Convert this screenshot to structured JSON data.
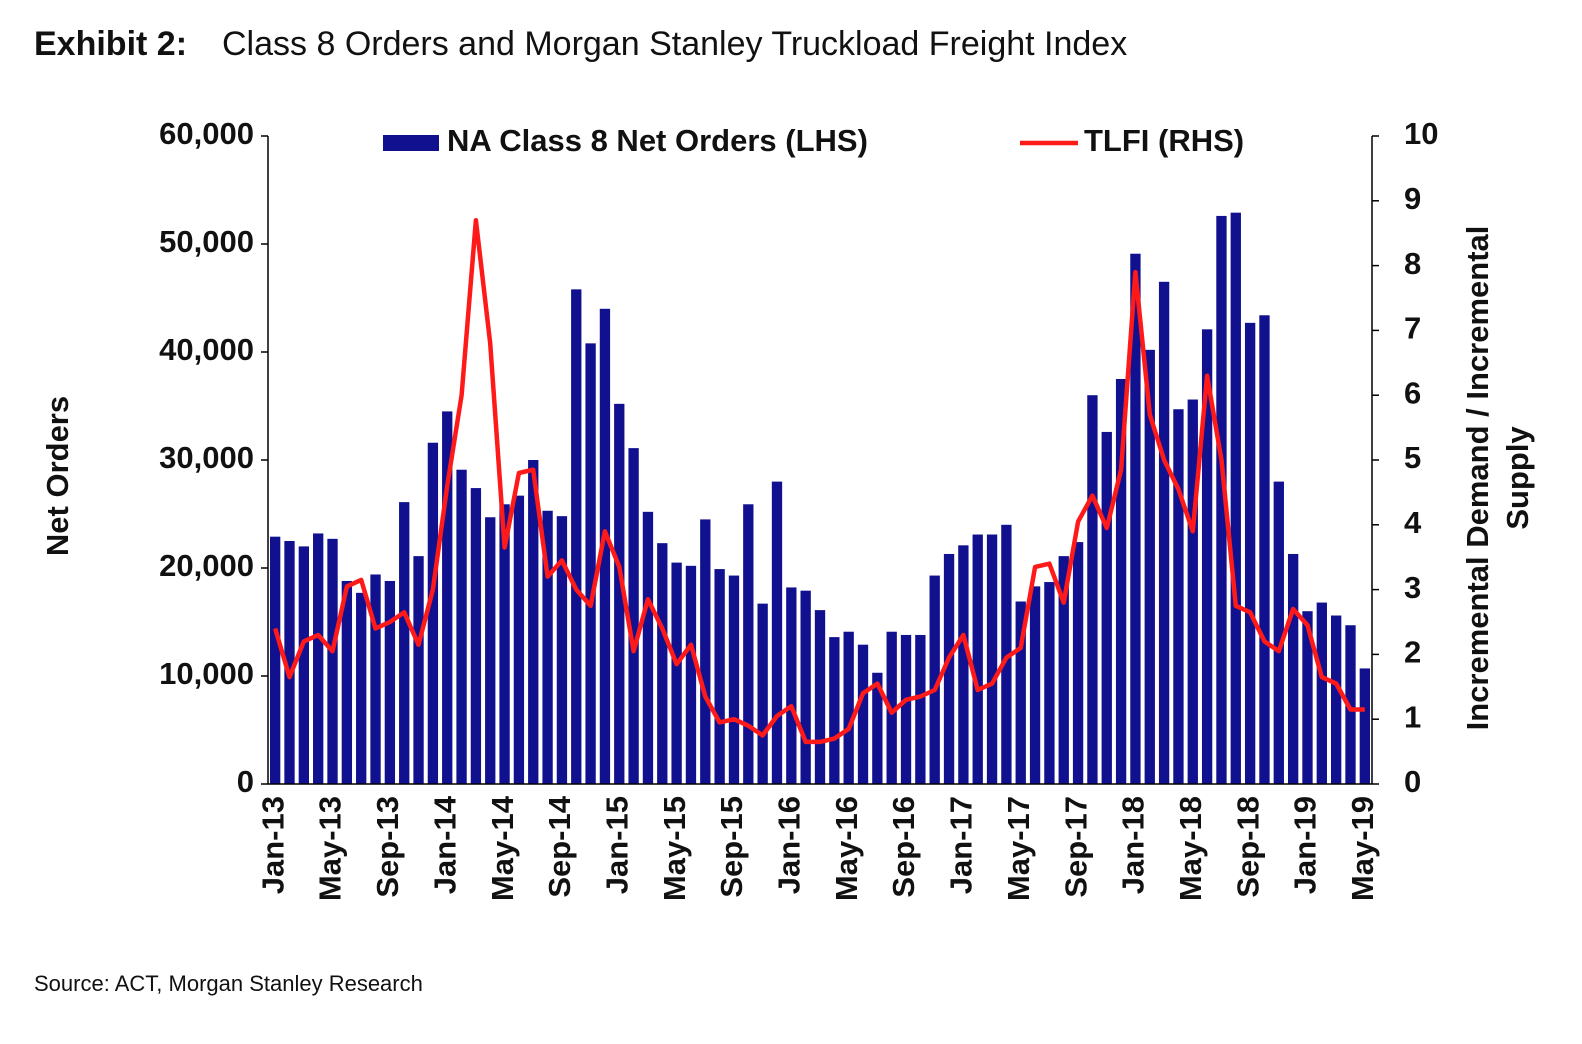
{
  "chart_data": {
    "type": "bar_line",
    "title_label": "Exhibit 2:",
    "title": "Class 8 Orders and Morgan Stanley Truckload Freight Index",
    "source": "Source: ACT, Morgan Stanley Research",
    "ylabel": "Net Orders",
    "y2label": [
      "Incremental Demand / Incremental",
      "Supply"
    ],
    "categories": [
      "Jan-13",
      null,
      null,
      null,
      "May-13",
      null,
      null,
      null,
      "Sep-13",
      null,
      null,
      null,
      "Jan-14",
      null,
      null,
      null,
      "May-14",
      null,
      null,
      null,
      "Sep-14",
      null,
      null,
      null,
      "Jan-15",
      null,
      null,
      null,
      "May-15",
      null,
      null,
      null,
      "Sep-15",
      null,
      null,
      null,
      "Jan-16",
      null,
      null,
      null,
      "May-16",
      null,
      null,
      null,
      "Sep-16",
      null,
      null,
      null,
      "Jan-17",
      null,
      null,
      null,
      "May-17",
      null,
      null,
      null,
      "Sep-17",
      null,
      null,
      null,
      "Jan-18",
      null,
      null,
      null,
      "May-18",
      null,
      null,
      null,
      "Sep-18",
      null,
      null,
      null,
      "Jan-19",
      null,
      null,
      null,
      "May-19"
    ],
    "series": [
      {
        "name": "NA Class 8 Net Orders (LHS)",
        "type": "bar",
        "color": "#11118f",
        "axis": "y",
        "values": [
          22900,
          22500,
          22000,
          23200,
          22700,
          18800,
          17700,
          19400,
          18800,
          26100,
          21100,
          31600,
          34500,
          29100,
          27400,
          24700,
          25900,
          26700,
          30000,
          25300,
          24800,
          45800,
          40800,
          44000,
          35200,
          31100,
          25200,
          22300,
          20500,
          20200,
          24500,
          19900,
          19300,
          25900,
          16700,
          28000,
          18200,
          17900,
          16100,
          13600,
          14100,
          12900,
          10300,
          14100,
          13800,
          13800,
          19300,
          21300,
          22100,
          23100,
          23100,
          24000,
          16900,
          18300,
          18700,
          21100,
          22400,
          36000,
          32600,
          37500,
          49100,
          40200,
          46500,
          34700,
          35600,
          42100,
          52600,
          52900,
          42700,
          43400,
          28000,
          21300,
          16000,
          16800,
          15600,
          14700,
          10700
        ]
      },
      {
        "name": "TLFI (RHS)",
        "type": "line",
        "color": "#ff1a1a",
        "axis": "y2",
        "values": [
          2.4,
          1.65,
          2.2,
          2.3,
          2.05,
          3.05,
          3.15,
          2.4,
          2.5,
          2.65,
          2.15,
          3.0,
          4.6,
          6.0,
          8.7,
          6.8,
          3.65,
          4.8,
          4.85,
          3.2,
          3.45,
          3.0,
          2.75,
          3.9,
          3.35,
          2.05,
          2.85,
          2.4,
          1.85,
          2.15,
          1.35,
          0.95,
          1.0,
          0.9,
          0.75,
          1.05,
          1.2,
          0.65,
          0.65,
          0.7,
          0.85,
          1.4,
          1.55,
          1.1,
          1.3,
          1.35,
          1.45,
          1.95,
          2.3,
          1.45,
          1.55,
          1.95,
          2.1,
          3.35,
          3.4,
          2.8,
          4.05,
          4.45,
          3.95,
          4.85,
          7.9,
          5.7,
          5.0,
          4.55,
          3.9,
          6.3,
          5.0,
          2.75,
          2.65,
          2.2,
          2.05,
          2.7,
          2.45,
          1.65,
          1.55,
          1.15,
          1.15
        ]
      }
    ],
    "ylim": [
      0,
      60000
    ],
    "yticks": [
      0,
      {
        "value": 10000,
        "label": "10,000"
      },
      {
        "value": 20000,
        "label": "20,000"
      },
      {
        "value": 30000,
        "label": "30,000"
      },
      {
        "value": 40000,
        "label": "40,000"
      },
      {
        "value": 50000,
        "label": "50,000"
      },
      {
        "value": 60000,
        "label": "60,000"
      }
    ],
    "y2lim": [
      0,
      10
    ],
    "y2ticks": [
      0,
      1,
      2,
      3,
      4,
      5,
      6,
      7,
      8,
      9,
      10
    ],
    "legend": "top"
  }
}
